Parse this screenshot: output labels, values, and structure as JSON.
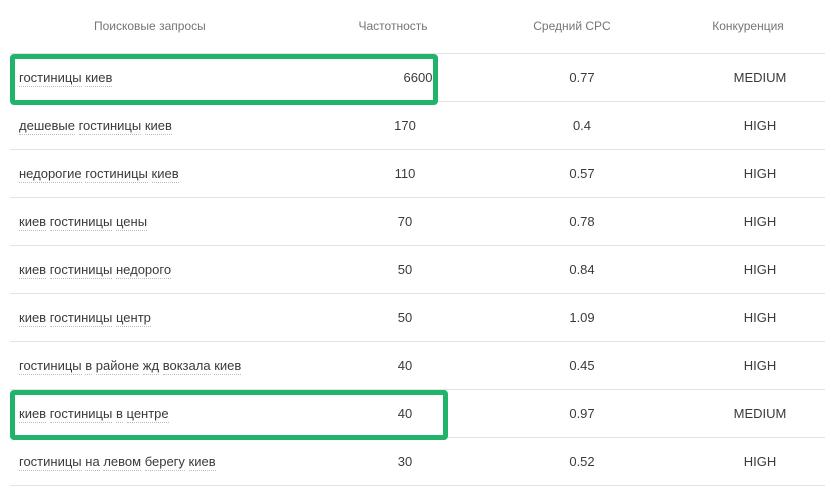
{
  "headers": {
    "query": "Поисковые запросы",
    "frequency": "Частотность",
    "cpc": "Средний CPC",
    "competition": "Конкуренция"
  },
  "rows": [
    {
      "words": [
        "гостиницы",
        "киев"
      ],
      "frequency": "6600",
      "cpc": "0.77",
      "competition": "MEDIUM",
      "highlighted": true
    },
    {
      "words": [
        "дешевые",
        "гостиницы",
        "киев"
      ],
      "frequency": "170",
      "cpc": "0.4",
      "competition": "HIGH",
      "highlighted": false
    },
    {
      "words": [
        "недорогие",
        "гостиницы",
        "киев"
      ],
      "frequency": "110",
      "cpc": "0.57",
      "competition": "HIGH",
      "highlighted": false
    },
    {
      "words": [
        "киев",
        "гостиницы",
        "цены"
      ],
      "frequency": "70",
      "cpc": "0.78",
      "competition": "HIGH",
      "highlighted": false
    },
    {
      "words": [
        "киев",
        "гостиницы",
        "недорого"
      ],
      "frequency": "50",
      "cpc": "0.84",
      "competition": "HIGH",
      "highlighted": false
    },
    {
      "words": [
        "киев",
        "гостиницы",
        "центр"
      ],
      "frequency": "50",
      "cpc": "1.09",
      "competition": "HIGH",
      "highlighted": false
    },
    {
      "words": [
        "гостиницы",
        "в",
        "районе",
        "жд",
        "вокзала",
        "киев"
      ],
      "frequency": "40",
      "cpc": "0.45",
      "competition": "HIGH",
      "highlighted": false
    },
    {
      "words": [
        "киев",
        "гостиницы",
        "в",
        "центре"
      ],
      "frequency": "40",
      "cpc": "0.97",
      "competition": "MEDIUM",
      "highlighted": true
    },
    {
      "words": [
        "гостиницы",
        "на",
        "левом",
        "берегу",
        "киев"
      ],
      "frequency": "30",
      "cpc": "0.52",
      "competition": "HIGH",
      "highlighted": false
    }
  ],
  "colors": {
    "highlight": "#21b36a",
    "divider": "#e3e3e3",
    "header_text": "#757575",
    "cell_text": "#3a3a3a"
  }
}
